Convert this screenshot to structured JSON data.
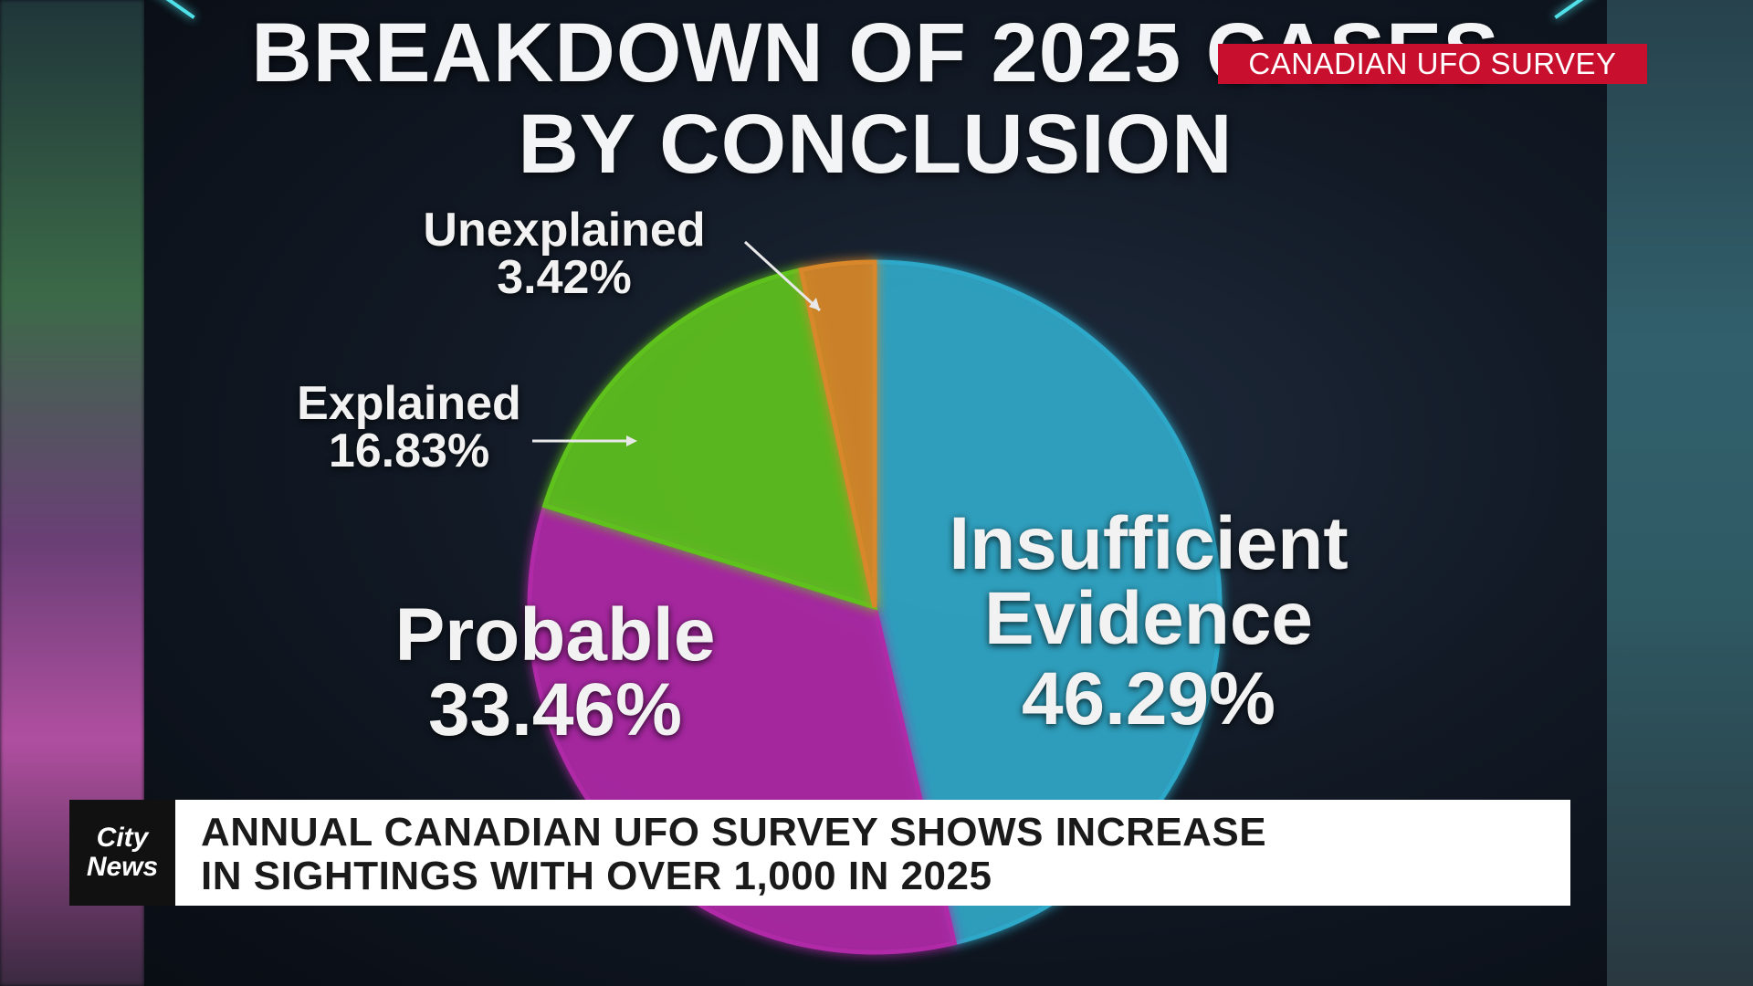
{
  "badge": "CANADIAN UFO SURVEY",
  "chart_data": {
    "type": "pie",
    "title_line1": "BREAKDOWN OF 2025 CASES",
    "title_line2": "BY CONCLUSION",
    "slices": [
      {
        "label": "Insufficient Evidence",
        "label_line1": "Insufficient",
        "label_line2": "Evidence",
        "value_text": "46.29%",
        "value": 46.29,
        "color": "#2fa8c8"
      },
      {
        "label": "Probable",
        "value_text": "33.46%",
        "value": 33.46,
        "color": "#b02aa8"
      },
      {
        "label": "Explained",
        "value_text": "16.83%",
        "value": 16.83,
        "color": "#5fc21e"
      },
      {
        "label": "Unexplained",
        "value_text": "3.42%",
        "value": 3.42,
        "color": "#d8882a"
      }
    ]
  },
  "headline": {
    "line1": "ANNUAL CANADIAN UFO SURVEY SHOWS INCREASE",
    "line2": "IN SIGHTINGS WITH OVER 1,000 IN 2025"
  },
  "logo": {
    "line1": "City",
    "line2": "News"
  }
}
